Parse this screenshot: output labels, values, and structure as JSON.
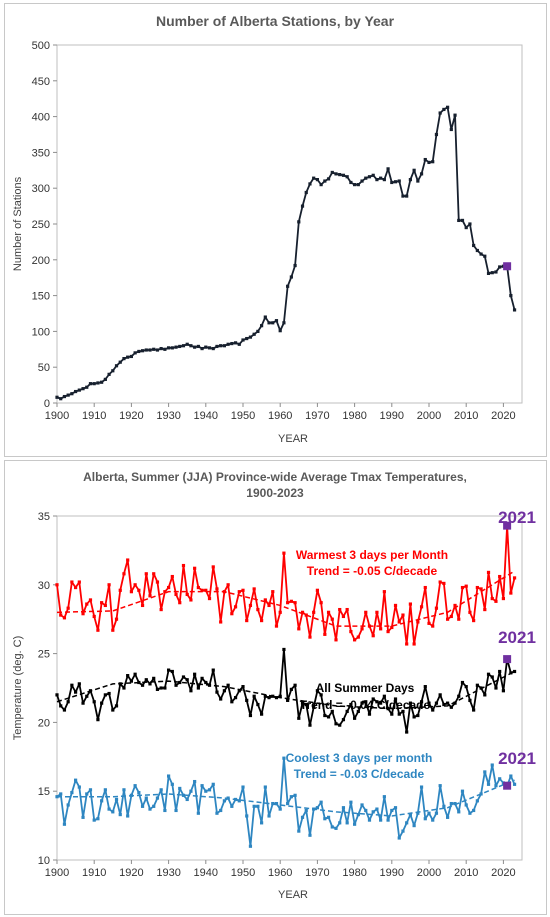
{
  "chart_data": [
    {
      "type": "line",
      "title": "Number of Alberta Stations, by Year",
      "xlabel": "YEAR",
      "ylabel": "Number of Stations",
      "xlim": [
        1900,
        2025
      ],
      "ylim": [
        0,
        500
      ],
      "xticks": [
        "1900",
        "1910",
        "1920",
        "1930",
        "1940",
        "1950",
        "1960",
        "1970",
        "1980",
        "1990",
        "2000",
        "2010",
        "2020"
      ],
      "yticks": [
        "0",
        "50",
        "100",
        "150",
        "200",
        "250",
        "300",
        "350",
        "400",
        "450",
        "500"
      ],
      "grid": false,
      "line_color": "#17202e",
      "highlight": {
        "x": 2021,
        "y": 191,
        "color": "#7030a0"
      },
      "x": [
        1900,
        1901,
        1902,
        1903,
        1904,
        1905,
        1906,
        1907,
        1908,
        1909,
        1910,
        1911,
        1912,
        1913,
        1914,
        1915,
        1916,
        1917,
        1918,
        1919,
        1920,
        1921,
        1922,
        1923,
        1924,
        1925,
        1926,
        1927,
        1928,
        1929,
        1930,
        1931,
        1932,
        1933,
        1934,
        1935,
        1936,
        1937,
        1938,
        1939,
        1940,
        1941,
        1942,
        1943,
        1944,
        1945,
        1946,
        1947,
        1948,
        1949,
        1950,
        1951,
        1952,
        1953,
        1954,
        1955,
        1956,
        1957,
        1958,
        1959,
        1960,
        1961,
        1962,
        1963,
        1964,
        1965,
        1966,
        1967,
        1968,
        1969,
        1970,
        1971,
        1972,
        1973,
        1974,
        1975,
        1976,
        1977,
        1978,
        1979,
        1980,
        1981,
        1982,
        1983,
        1984,
        1985,
        1986,
        1987,
        1988,
        1989,
        1990,
        1991,
        1992,
        1993,
        1994,
        1995,
        1996,
        1997,
        1998,
        1999,
        2000,
        2001,
        2002,
        2003,
        2004,
        2005,
        2006,
        2007,
        2008,
        2009,
        2010,
        2011,
        2012,
        2013,
        2014,
        2015,
        2016,
        2017,
        2018,
        2019,
        2020,
        2021,
        2022,
        2023
      ],
      "values": [
        8,
        6,
        9,
        11,
        13,
        16,
        18,
        20,
        22,
        27,
        27,
        28,
        29,
        33,
        40,
        45,
        52,
        57,
        62,
        64,
        65,
        70,
        72,
        73,
        74,
        74,
        75,
        74,
        76,
        75,
        77,
        77,
        78,
        79,
        80,
        82,
        80,
        78,
        79,
        76,
        78,
        77,
        76,
        79,
        80,
        80,
        82,
        83,
        84,
        82,
        88,
        90,
        92,
        96,
        100,
        108,
        120,
        112,
        112,
        115,
        101,
        112,
        163,
        176,
        192,
        253,
        275,
        294,
        306,
        314,
        312,
        305,
        310,
        313,
        322,
        320,
        319,
        318,
        316,
        308,
        305,
        305,
        310,
        314,
        316,
        318,
        312,
        314,
        312,
        327,
        308,
        309,
        310,
        289,
        289,
        312,
        325,
        310,
        320,
        340,
        336,
        337,
        375,
        405,
        410,
        413,
        382,
        402,
        255,
        255,
        245,
        250,
        220,
        213,
        208,
        205,
        181,
        182,
        183,
        190,
        191,
        191,
        150,
        130
      ]
    },
    {
      "type": "line",
      "title": "Alberta, Summer (JJA) Province-wide Average Tmax Temperatures,",
      "subtitle": "1900-2023",
      "xlabel": "YEAR",
      "ylabel": "Temperature (deg. C)",
      "xlim": [
        1900,
        2025
      ],
      "ylim": [
        10,
        35
      ],
      "xticks": [
        "1900",
        "1910",
        "1920",
        "1930",
        "1940",
        "1950",
        "1960",
        "1970",
        "1980",
        "1990",
        "2000",
        "2010",
        "2020"
      ],
      "yticks": [
        "10",
        "15",
        "20",
        "25",
        "30",
        "35"
      ],
      "grid": false,
      "series": [
        {
          "name": "Warmest 3 days per Month",
          "trend_label": "Trend = -0.05 C/decade",
          "color": "#ff0000",
          "trend": [
            28.0,
            28.1,
            29.5,
            29.5,
            28.5,
            27.0,
            27.0,
            28.0,
            31.0
          ],
          "highlight": {
            "x": 2021,
            "y": 34.3,
            "label": "2021"
          },
          "values": [
            30.0,
            27.8,
            27.6,
            28.3,
            30.2,
            29.8,
            30.2,
            27.9,
            28.6,
            28.9,
            27.7,
            26.7,
            28.7,
            28.5,
            30.0,
            26.7,
            27.5,
            29.6,
            30.8,
            31.8,
            29.5,
            30.0,
            29.6,
            28.5,
            30.8,
            29.2,
            30.8,
            30.2,
            28.2,
            29.5,
            29.8,
            30.6,
            29.3,
            28.7,
            31.4,
            29.3,
            28.9,
            31.2,
            29.8,
            29.6,
            29.6,
            29.0,
            31.3,
            29.7,
            27.3,
            29.5,
            30.0,
            27.9,
            28.4,
            29.5,
            29.6,
            27.4,
            28.5,
            29.7,
            28.2,
            27.4,
            28.9,
            28.5,
            29.5,
            27.0,
            28.0,
            32.3,
            28.7,
            28.8,
            28.7,
            26.8,
            28.0,
            27.8,
            26.2,
            28.0,
            29.6,
            28.7,
            26.4,
            28.0,
            27.5,
            26.0,
            28.2,
            27.7,
            28.2,
            26.6,
            26.0,
            26.2,
            26.8,
            28.0,
            27.0,
            26.3,
            28.0,
            26.8,
            29.5,
            26.6,
            26.9,
            28.5,
            27.3,
            27.8,
            25.7,
            28.6,
            25.7,
            27.3,
            28.4,
            29.8,
            27.2,
            27.0,
            28.3,
            30.2,
            30.1,
            27.5,
            27.7,
            28.5,
            27.5,
            29.8,
            29.9,
            28.0,
            27.4,
            29.8,
            29.7,
            28.2,
            30.9,
            29.0,
            28.8,
            30.6,
            29.0,
            34.3,
            29.4,
            30.5
          ]
        },
        {
          "name": "All Summer Days",
          "trend_label": "Trend = -0.04 C/decade",
          "color": "#000000",
          "trend": [
            21.5,
            22.8,
            23.0,
            22.6,
            21.8,
            21.2,
            21.0,
            21.2,
            23.7
          ],
          "highlight": {
            "x": 2021,
            "y": 24.6,
            "label": "2021"
          },
          "values": [
            22.0,
            21.2,
            20.9,
            21.5,
            22.7,
            22.2,
            22.8,
            21.4,
            21.9,
            22.3,
            21.5,
            20.2,
            21.4,
            22.0,
            22.1,
            20.9,
            21.2,
            22.8,
            22.5,
            23.4,
            23.0,
            23.5,
            22.9,
            22.7,
            23.1,
            22.8,
            23.2,
            22.4,
            22.5,
            22.5,
            23.8,
            23.7,
            22.7,
            22.9,
            23.3,
            23.1,
            22.3,
            23.5,
            22.5,
            23.2,
            22.9,
            22.7,
            23.8,
            22.2,
            21.7,
            22.3,
            22.7,
            21.5,
            21.8,
            22.3,
            22.6,
            21.6,
            20.5,
            21.9,
            21.3,
            20.6,
            21.9,
            21.8,
            21.9,
            21.8,
            21.9,
            25.3,
            21.6,
            22.4,
            22.7,
            20.3,
            21.4,
            21.3,
            19.8,
            21.1,
            22.3,
            22.0,
            20.5,
            20.4,
            20.8,
            19.9,
            19.8,
            20.2,
            20.8,
            21.3,
            20.3,
            20.8,
            21.4,
            21.5,
            20.6,
            21.7,
            21.5,
            21.4,
            21.9,
            21.0,
            20.6,
            21.7,
            20.6,
            20.8,
            19.3,
            21.4,
            20.4,
            20.5,
            21.5,
            22.6,
            21.4,
            20.9,
            21.4,
            22.0,
            21.3,
            21.4,
            21.1,
            21.4,
            21.9,
            22.9,
            22.6,
            21.6,
            20.9,
            22.7,
            22.5,
            22.0,
            23.5,
            23.3,
            22.5,
            23.7,
            22.3,
            24.6,
            23.6,
            23.7
          ]
        },
        {
          "name": "Coolest 3 days per month",
          "trend_label": "Trend = -0.03 C/decade",
          "color": "#2e86c1",
          "trend": [
            14.6,
            14.6,
            14.8,
            14.5,
            14.0,
            13.5,
            13.2,
            13.8,
            15.8
          ],
          "highlight": {
            "x": 2021,
            "y": 15.4,
            "label": "2021"
          },
          "values": [
            14.6,
            14.8,
            12.6,
            14.0,
            14.9,
            15.8,
            15.3,
            13.1,
            14.8,
            15.1,
            12.9,
            13.0,
            14.3,
            15.1,
            13.7,
            13.5,
            14.4,
            13.3,
            15.1,
            13.2,
            14.7,
            15.4,
            14.9,
            13.9,
            14.5,
            13.7,
            13.9,
            14.5,
            15.1,
            13.6,
            16.1,
            15.5,
            13.6,
            15.2,
            14.7,
            14.4,
            15.0,
            15.7,
            13.4,
            15.4,
            15.0,
            15.1,
            15.5,
            13.4,
            13.6,
            14.3,
            14.5,
            13.9,
            14.4,
            14.3,
            15.3,
            13.2,
            11.0,
            13.9,
            13.9,
            12.7,
            15.3,
            13.2,
            14.1,
            14.1,
            13.7,
            17.4,
            14.1,
            14.6,
            14.7,
            12.1,
            13.1,
            13.6,
            11.8,
            13.7,
            13.8,
            14.2,
            13.0,
            13.1,
            12.4,
            12.3,
            12.7,
            13.8,
            12.7,
            14.2,
            12.6,
            13.3,
            14.0,
            13.6,
            12.9,
            13.5,
            13.7,
            12.9,
            14.6,
            12.9,
            13.6,
            13.8,
            11.6,
            12.1,
            12.7,
            13.3,
            12.5,
            13.4,
            15.3,
            13.0,
            13.4,
            12.9,
            13.4,
            15.4,
            13.9,
            13.1,
            14.1,
            14.1,
            13.5,
            15.0,
            14.0,
            13.4,
            13.6,
            14.3,
            14.8,
            16.4,
            15.5,
            16.9,
            15.4,
            15.9,
            15.6,
            15.4,
            16.1,
            15.5
          ]
        }
      ]
    }
  ]
}
